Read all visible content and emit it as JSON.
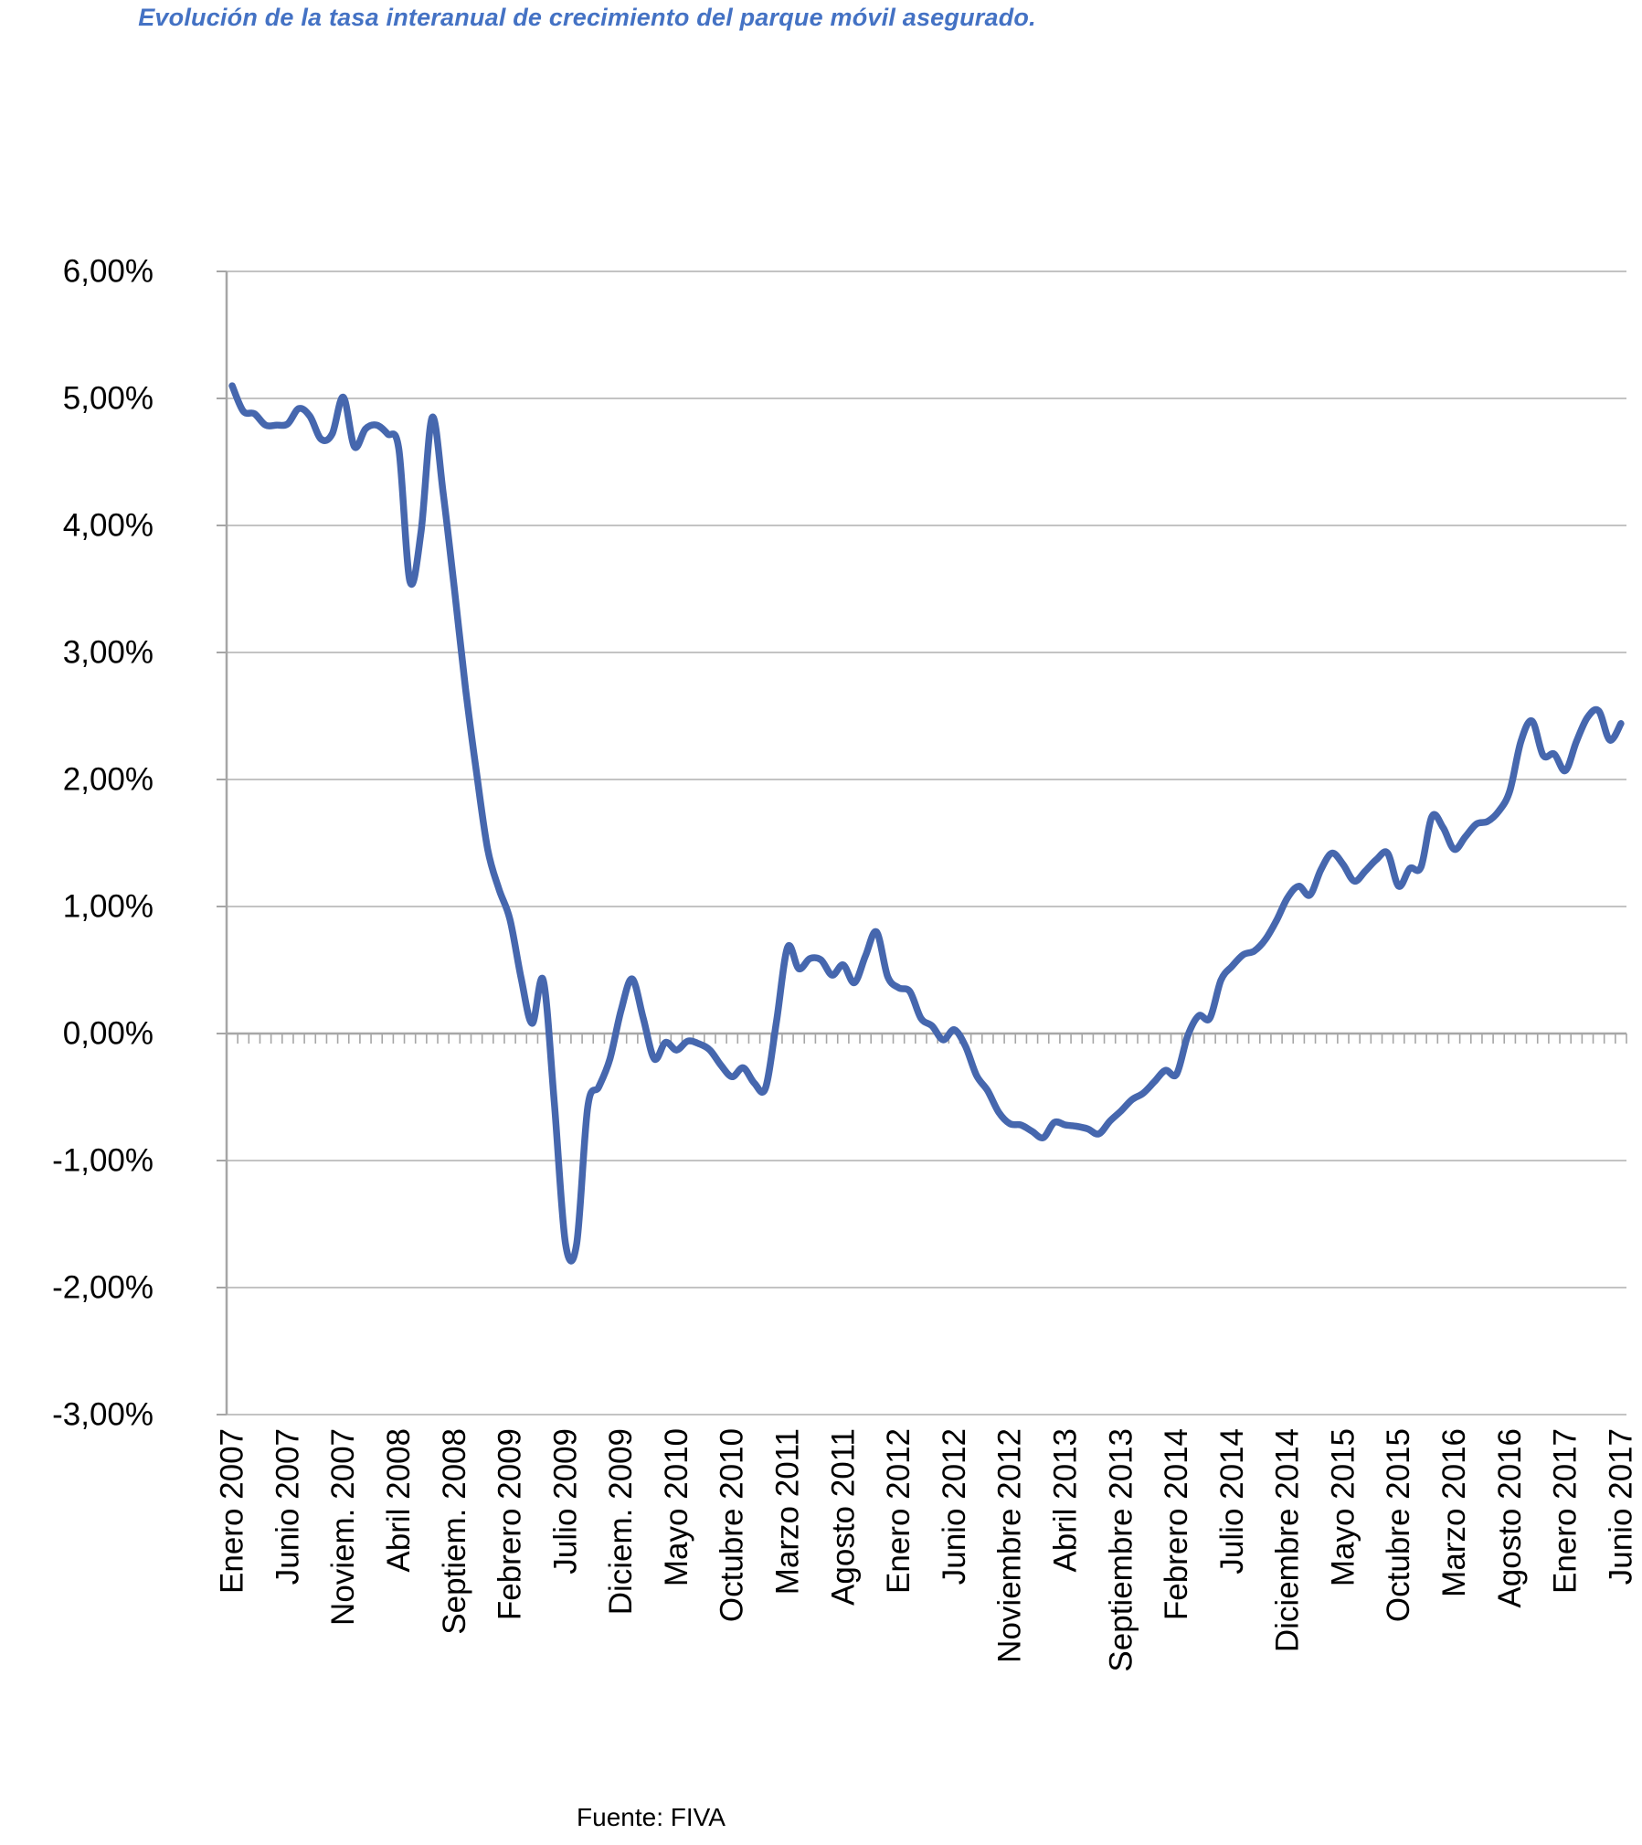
{
  "page": {
    "title": "Evolución de la tasa interanual de crecimiento del parque móvil asegurado.",
    "source": "Fuente: FIVA"
  },
  "colors": {
    "line": "#4667AE",
    "title": "#4472C4",
    "gridline": "#C3C3C3",
    "axis": "#A6A6A6",
    "label_text": "#000000",
    "background": "#FFFFFF"
  },
  "chart_data": {
    "type": "line",
    "title": "Evolución de la tasa interanual de crecimiento del parque móvil asegurado.",
    "xlabel": "",
    "ylabel": "",
    "ylim": [
      -3,
      6
    ],
    "grid": "horizontal",
    "legend": "none",
    "x_start": "Enero 2007",
    "x_end": "Junio 2017",
    "x_frequency": "monthly",
    "y_ticks": [
      {
        "value": 6,
        "label": "6,00%"
      },
      {
        "value": 5,
        "label": "5,00%"
      },
      {
        "value": 4,
        "label": "4,00%"
      },
      {
        "value": 3,
        "label": "3,00%"
      },
      {
        "value": 2,
        "label": "2,00%"
      },
      {
        "value": 1,
        "label": "1,00%"
      },
      {
        "value": 0,
        "label": "0,00%"
      },
      {
        "value": -1,
        "label": "-1,00%"
      },
      {
        "value": -2,
        "label": "-2,00%"
      },
      {
        "value": -3,
        "label": "-3,00%"
      }
    ],
    "x_tick_start_index": 0,
    "x_tick_step": 5,
    "x_tick_labels": [
      "Enero 2007",
      "Junio 2007",
      "Noviem. 2007",
      "Abril 2008",
      "Septiem. 2008",
      "Febrero 2009",
      "Julio 2009",
      "Diciem. 2009",
      "Mayo 2010",
      "Octubre 2010",
      "Marzo 2011",
      "Agosto 2011",
      "Enero 2012",
      "Junio 2012",
      "Noviembre 2012",
      "Abril 2013",
      "Septiembre 2013",
      "Febrero 2014",
      "Julio 2014",
      "Diciembre 2014",
      "Mayo 2015",
      "Octubre 2015",
      "Marzo 2016",
      "Agosto 2016",
      "Enero 2017",
      "Junio 2017"
    ],
    "values": [
      5.1,
      4.9,
      4.88,
      4.79,
      4.79,
      4.8,
      4.92,
      4.86,
      4.68,
      4.72,
      5.01,
      4.62,
      4.76,
      4.79,
      4.72,
      4.6,
      3.56,
      3.95,
      4.85,
      4.25,
      3.5,
      2.72,
      2.05,
      1.45,
      1.14,
      0.9,
      0.44,
      0.08,
      0.42,
      -0.55,
      -1.65,
      -1.66,
      -0.58,
      -0.42,
      -0.2,
      0.18,
      0.43,
      0.12,
      -0.2,
      -0.07,
      -0.13,
      -0.06,
      -0.08,
      -0.13,
      -0.25,
      -0.34,
      -0.27,
      -0.39,
      -0.43,
      0.1,
      0.68,
      0.51,
      0.59,
      0.58,
      0.46,
      0.54,
      0.4,
      0.61,
      0.8,
      0.45,
      0.36,
      0.33,
      0.12,
      0.06,
      -0.05,
      0.03,
      -0.1,
      -0.33,
      -0.45,
      -0.62,
      -0.71,
      -0.72,
      -0.77,
      -0.82,
      -0.7,
      -0.72,
      -0.73,
      -0.75,
      -0.79,
      -0.69,
      -0.61,
      -0.52,
      -0.47,
      -0.38,
      -0.29,
      -0.32,
      -0.02,
      0.14,
      0.12,
      0.42,
      0.53,
      0.62,
      0.65,
      0.74,
      0.89,
      1.07,
      1.16,
      1.09,
      1.29,
      1.42,
      1.33,
      1.2,
      1.28,
      1.37,
      1.42,
      1.16,
      1.3,
      1.31,
      1.71,
      1.62,
      1.45,
      1.55,
      1.65,
      1.67,
      1.75,
      1.91,
      2.3,
      2.46,
      2.19,
      2.2,
      2.07,
      2.3,
      2.49,
      2.54,
      2.31,
      2.44
    ]
  }
}
